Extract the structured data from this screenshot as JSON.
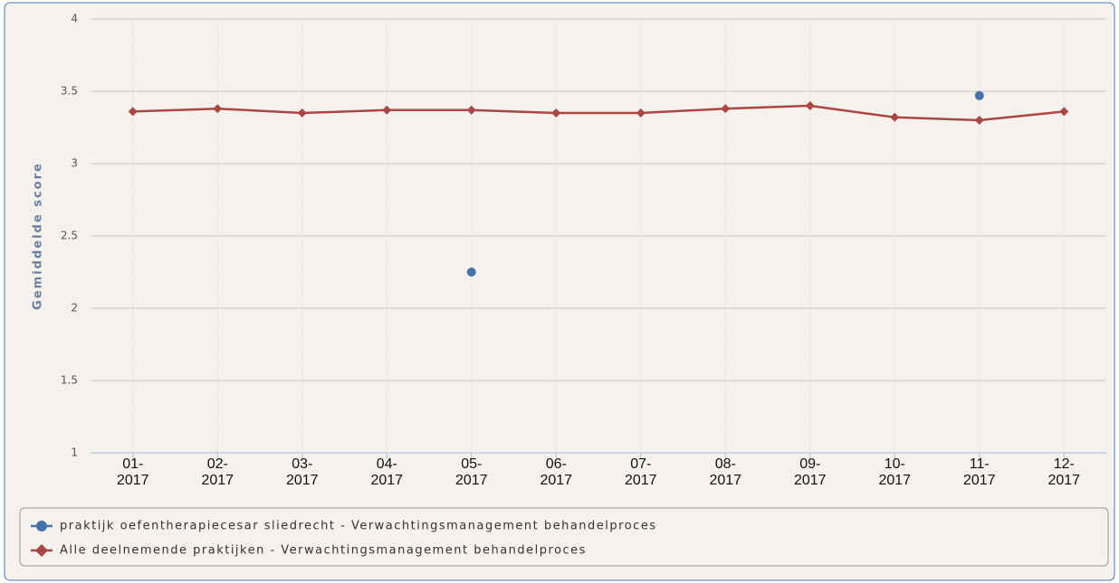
{
  "chart_data": {
    "type": "line",
    "ylabel": "Gemiddelde score",
    "categories": [
      "01-2017",
      "02-2017",
      "03-2017",
      "04-2017",
      "05-2017",
      "06-2017",
      "07-2017",
      "08-2017",
      "09-2017",
      "10-2017",
      "11-2017",
      "12-2017"
    ],
    "series": [
      {
        "name": "praktijk oefentherapiecesar sliedrecht - Verwachtingsmanagement behandelproces",
        "color": "#4572a7",
        "marker": "circle",
        "values": [
          null,
          null,
          null,
          null,
          2.25,
          null,
          null,
          null,
          null,
          null,
          3.47,
          null
        ]
      },
      {
        "name": "Alle deelnemende praktijken - Verwachtingsmanagement behandelproces",
        "color": "#aa4643",
        "marker": "diamond",
        "values": [
          3.36,
          3.38,
          3.35,
          3.37,
          3.37,
          3.35,
          3.35,
          3.38,
          3.4,
          3.32,
          3.3,
          3.36
        ]
      }
    ],
    "ylim": [
      1,
      4
    ],
    "yticks": [
      1,
      1.5,
      2,
      2.5,
      3,
      3.5,
      4
    ],
    "grid": true
  }
}
